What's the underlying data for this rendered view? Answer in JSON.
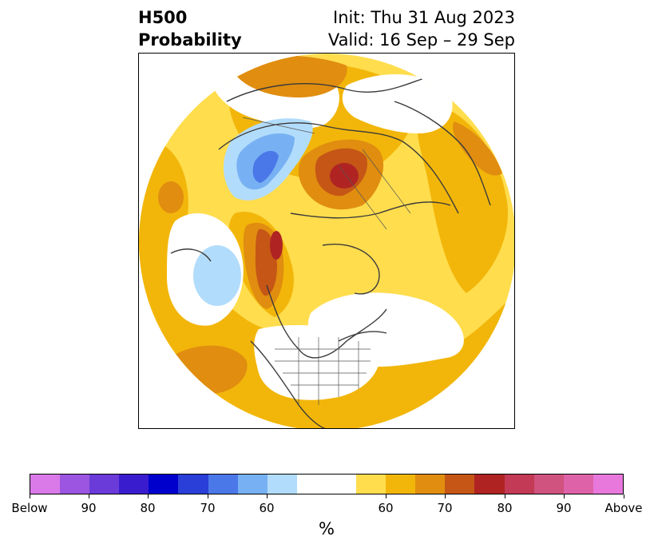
{
  "title": {
    "left_line1": "H500",
    "left_line2": "Probability",
    "right_line1": "Init: Thu 31 Aug 2023",
    "right_line2": "Valid: 16 Sep – 29 Sep"
  },
  "colorbar": {
    "colors": [
      "#d97ae8",
      "#9b55e0",
      "#6a3bd9",
      "#3a1ccf",
      "#0000cc",
      "#2a3ed8",
      "#4b78e8",
      "#77b1f3",
      "#b2dcfb",
      "#ffffff",
      "#ffffff",
      "#ffdd4d",
      "#f2b60a",
      "#e08d10",
      "#c55616",
      "#b02323",
      "#c23a55",
      "#d0527f",
      "#de62a8",
      "#e878dc"
    ],
    "tick_labels": [
      "Below",
      "90",
      "80",
      "70",
      "60",
      "60",
      "70",
      "80",
      "90",
      "Above"
    ],
    "unit": "%"
  },
  "legend_categories": {
    "below_normal": "Below",
    "above_normal": "Above"
  }
}
